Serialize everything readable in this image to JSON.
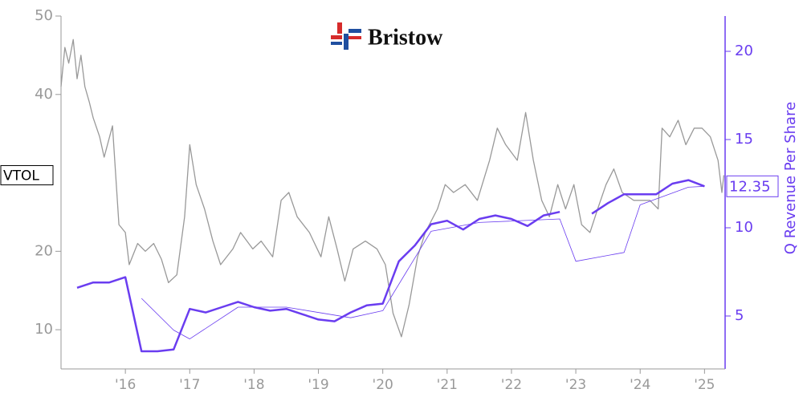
{
  "chart_data": {
    "type": "line",
    "logo_text": "Bristow",
    "y2label": "Q Revenue Per Share",
    "xlim": [
      2015,
      2025.32
    ],
    "xticks": [
      {
        "value": 2016,
        "label": "'16"
      },
      {
        "value": 2017,
        "label": "'17"
      },
      {
        "value": 2018,
        "label": "'18"
      },
      {
        "value": 2019,
        "label": "'19"
      },
      {
        "value": 2020,
        "label": "'20"
      },
      {
        "value": 2021,
        "label": "'21"
      },
      {
        "value": 2022,
        "label": "'22"
      },
      {
        "value": 2023,
        "label": "'23"
      },
      {
        "value": 2024,
        "label": "'24"
      },
      {
        "value": 2025,
        "label": "'25"
      }
    ],
    "ylim": [
      5,
      50
    ],
    "yticks": [
      10,
      20,
      40,
      50
    ],
    "y2lim": [
      2,
      22
    ],
    "y2ticks": [
      5,
      10,
      15,
      20
    ],
    "series": [
      {
        "name": "VTOL",
        "color": "#999999",
        "axis": "y",
        "width": 1.3,
        "x": [
          2015.0,
          2015.06,
          2015.12,
          2015.19,
          2015.25,
          2015.31,
          2015.37,
          2015.44,
          2015.5,
          2015.6,
          2015.67,
          2015.8,
          2015.9,
          2016.0,
          2016.06,
          2016.19,
          2016.31,
          2016.44,
          2016.56,
          2016.67,
          2016.8,
          2016.92,
          2017.0,
          2017.1,
          2017.23,
          2017.36,
          2017.48,
          2017.67,
          2017.79,
          2017.98,
          2018.11,
          2018.29,
          2018.42,
          2018.54,
          2018.67,
          2018.86,
          2019.04,
          2019.16,
          2019.29,
          2019.41,
          2019.54,
          2019.73,
          2019.91,
          2020.04,
          2020.16,
          2020.29,
          2020.41,
          2020.54,
          2020.66,
          2020.85,
          2020.97,
          2021.1,
          2021.28,
          2021.47,
          2021.66,
          2021.78,
          2021.91,
          2022.09,
          2022.22,
          2022.34,
          2022.47,
          2022.59,
          2022.72,
          2022.84,
          2022.97,
          2023.09,
          2023.22,
          2023.34,
          2023.47,
          2023.59,
          2023.72,
          2023.9,
          2024.03,
          2024.15,
          2024.28,
          2024.34,
          2024.46,
          2024.59,
          2024.71,
          2024.84,
          2024.96,
          2025.09,
          2025.21,
          2025.27,
          2025.3
        ],
        "values": [
          41,
          46,
          44,
          47,
          42,
          45,
          41,
          39,
          37,
          34.6,
          32,
          36,
          23.4,
          22.4,
          18.3,
          21,
          20,
          21,
          19,
          16,
          17,
          24.4,
          33.6,
          28.5,
          25.4,
          21.3,
          18.3,
          20.3,
          22.4,
          20.3,
          21.3,
          19.3,
          26.5,
          27.5,
          24.4,
          22.4,
          19.3,
          24.4,
          20.3,
          16.2,
          20.3,
          21.3,
          20.3,
          18.3,
          12.1,
          9.1,
          13.2,
          19.3,
          22.4,
          25.4,
          28.5,
          27.5,
          28.5,
          26.5,
          31.6,
          35.7,
          33.6,
          31.6,
          37.7,
          31.6,
          26.5,
          24.4,
          28.5,
          25.4,
          28.5,
          23.4,
          22.4,
          25.4,
          28.5,
          30.5,
          27.5,
          26.5,
          26.5,
          26.5,
          25.4,
          35.7,
          34.6,
          36.7,
          33.6,
          35.7,
          35.7,
          34.6,
          31.6,
          27.5,
          29.7
        ]
      },
      {
        "color": "#6a3df0",
        "axis": "y2",
        "width": 2.5,
        "end_label": "12.35",
        "x": [
          2015.25,
          2015.5,
          2015.75,
          2016.0,
          2016.25,
          2016.5,
          2016.75,
          2017.0,
          2017.25,
          2017.5,
          2017.75,
          2018.0,
          2018.25,
          2018.5,
          2018.75,
          2019.0,
          2019.25,
          2019.5,
          2019.75,
          2020.0,
          2020.25,
          2020.5,
          2020.75,
          2021.0,
          2021.25,
          2021.5,
          2021.75,
          2022.0,
          2022.25,
          2022.5,
          2022.75,
          2023.0,
          2023.25,
          2023.5,
          2023.75,
          2024.0,
          2024.25,
          2024.5,
          2024.75,
          2025.0
        ],
        "values": [
          6.6,
          6.9,
          6.9,
          7.2,
          3.0,
          3.0,
          3.1,
          5.4,
          5.2,
          5.5,
          5.8,
          5.5,
          5.3,
          5.4,
          5.1,
          4.8,
          4.7,
          5.2,
          5.6,
          5.7,
          8.1,
          9.0,
          10.2,
          10.4,
          9.9,
          10.5,
          10.7,
          10.5,
          10.1,
          10.7,
          10.9,
          null,
          10.8,
          11.4,
          11.9,
          11.9,
          11.9,
          12.5,
          12.7,
          12.35
        ]
      },
      {
        "color": "#6a3df0",
        "axis": "y2",
        "width": 0.8,
        "x": [
          2016.25,
          2016.75,
          2017.0,
          2017.75,
          2018.5,
          2019.5,
          2020.0,
          2020.75,
          2021.5,
          2022.75,
          2023.0,
          2023.75,
          2024.0,
          2024.75,
          2025.0
        ],
        "values": [
          6.0,
          4.2,
          3.7,
          5.5,
          5.5,
          4.9,
          5.3,
          9.8,
          10.3,
          10.5,
          8.1,
          8.6,
          11.3,
          12.3,
          12.35
        ]
      }
    ]
  }
}
